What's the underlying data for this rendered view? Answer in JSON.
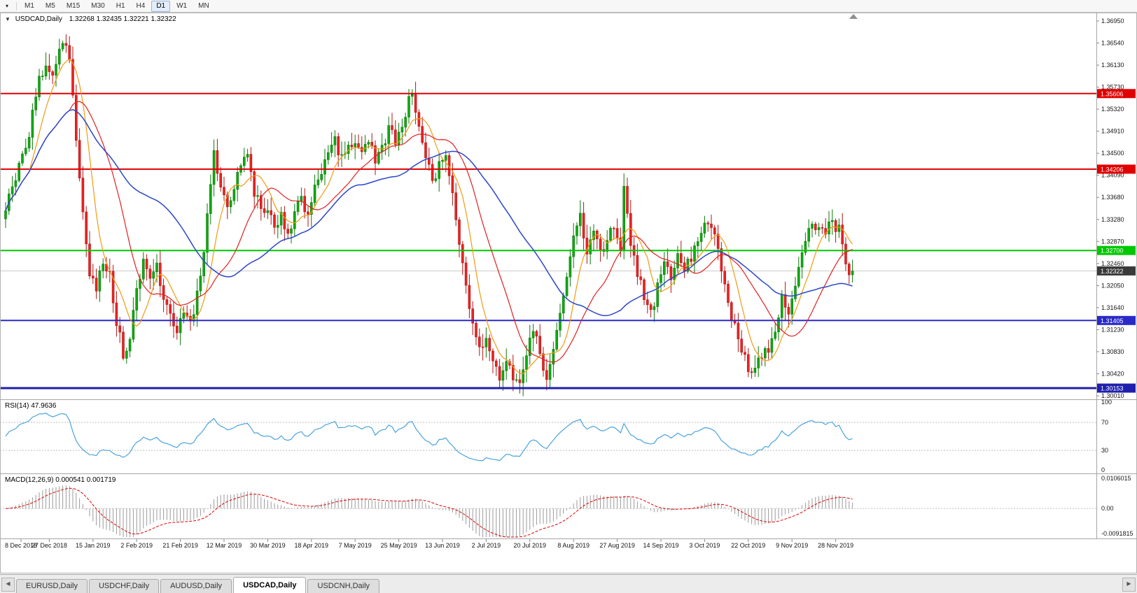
{
  "toolbar": {
    "dropdown_icon": "▾",
    "timeframes": [
      {
        "label": "M1",
        "active": false
      },
      {
        "label": "M5",
        "active": false
      },
      {
        "label": "M15",
        "active": false
      },
      {
        "label": "M30",
        "active": false
      },
      {
        "label": "H1",
        "active": false
      },
      {
        "label": "H4",
        "active": false
      },
      {
        "label": "D1",
        "active": true
      },
      {
        "label": "W1",
        "active": false
      },
      {
        "label": "MN",
        "active": false
      }
    ]
  },
  "chart": {
    "title": {
      "collapse_icon": "▼",
      "symbol": "USDCAD,Daily",
      "ohlc": "1.32268 1.32435 1.32221 1.32322"
    }
  },
  "chart_data": {
    "type": "candlestick",
    "symbol": "USDCAD",
    "timeframe": "Daily",
    "ohlc_display": {
      "open": "1.32268",
      "high": "1.32435",
      "low": "1.32221",
      "close": "1.32322"
    },
    "price_axis": [
      "1.36950",
      "1.36540",
      "1.36130",
      "1.35730",
      "1.35320",
      "1.34910",
      "1.34500",
      "1.34090",
      "1.33680",
      "1.33280",
      "1.32870",
      "1.32460",
      "1.32050",
      "1.31640",
      "1.31230",
      "1.30830",
      "1.30420",
      "1.30010"
    ],
    "price_axis_top_value": 1.3695,
    "price_axis_bottom_value": 1.3001,
    "date_axis": [
      "8 Dec 2018",
      "27 Dec 2018",
      "15 Jan 2019",
      "2 Feb 2019",
      "21 Feb 2019",
      "12 Mar 2019",
      "30 Mar 2019",
      "18 Apr 2019",
      "7 May 2019",
      "25 May 2019",
      "13 Jun 2019",
      "2 Jul 2019",
      "20 Jul 2019",
      "8 Aug 2019",
      "27 Aug 2019",
      "14 Sep 2019",
      "3 Oct 2019",
      "22 Oct 2019",
      "9 Nov 2019",
      "28 Nov 2019"
    ],
    "bars_per_label": 13,
    "bar_count": 253,
    "candle_up_color": "#0faa0f",
    "candle_up_border": "#0a7a0a",
    "candle_down_color": "#ee2222",
    "candle_down_border": "#b31414",
    "horizontal_lines": [
      {
        "price": 1.35606,
        "label": "1.35606",
        "color": "#e00000",
        "width": 2
      },
      {
        "price": 1.34206,
        "label": "1.34206",
        "color": "#e00000",
        "width": 2
      },
      {
        "price": 1.327,
        "label": "1.32700",
        "color": "#00c800",
        "width": 2
      },
      {
        "price": 1.31405,
        "label": "1.31405",
        "color": "#2929c8",
        "width": 2
      },
      {
        "price": 1.30153,
        "label": "1.30153",
        "color": "#1f1fae",
        "width": 3
      }
    ],
    "current_price": {
      "value": 1.32322,
      "label": "1.32322",
      "badge_color": "#3a3a3a"
    },
    "moving_averages": [
      {
        "name": "ma-fast",
        "period": 8,
        "color": "#f29a11",
        "width": 1.2
      },
      {
        "name": "ma-medium",
        "period": 20,
        "color": "#e02020",
        "width": 1.2
      },
      {
        "name": "ma-slow",
        "period": 44,
        "color": "#2b46c8",
        "width": 1.5
      }
    ],
    "close_waypoints": [
      [
        0,
        1.335
      ],
      [
        2,
        1.3385
      ],
      [
        4,
        1.342
      ],
      [
        6,
        1.3455
      ],
      [
        8,
        1.352
      ],
      [
        10,
        1.3585
      ],
      [
        12,
        1.3615
      ],
      [
        14,
        1.3595
      ],
      [
        16,
        1.3648
      ],
      [
        18,
        1.3655
      ],
      [
        19,
        1.3618
      ],
      [
        21,
        1.348
      ],
      [
        23,
        1.333
      ],
      [
        25,
        1.323
      ],
      [
        27,
        1.32
      ],
      [
        29,
        1.3255
      ],
      [
        31,
        1.3225
      ],
      [
        33,
        1.314
      ],
      [
        35,
        1.3075
      ],
      [
        37,
        1.311
      ],
      [
        39,
        1.32
      ],
      [
        41,
        1.3245
      ],
      [
        43,
        1.321
      ],
      [
        45,
        1.3245
      ],
      [
        47,
        1.318
      ],
      [
        49,
        1.315
      ],
      [
        51,
        1.3125
      ],
      [
        53,
        1.3155
      ],
      [
        55,
        1.313
      ],
      [
        57,
        1.319
      ],
      [
        59,
        1.327
      ],
      [
        61,
        1.339
      ],
      [
        62,
        1.345
      ],
      [
        64,
        1.338
      ],
      [
        66,
        1.335
      ],
      [
        68,
        1.339
      ],
      [
        70,
        1.343
      ],
      [
        72,
        1.346
      ],
      [
        74,
        1.338
      ],
      [
        76,
        1.334
      ],
      [
        78,
        1.335
      ],
      [
        80,
        1.331
      ],
      [
        82,
        1.334
      ],
      [
        84,
        1.33
      ],
      [
        86,
        1.334
      ],
      [
        88,
        1.336
      ],
      [
        90,
        1.333
      ],
      [
        92,
        1.338
      ],
      [
        94,
        1.342
      ],
      [
        96,
        1.345
      ],
      [
        98,
        1.347
      ],
      [
        100,
        1.344
      ],
      [
        102,
        1.346
      ],
      [
        104,
        1.3475
      ],
      [
        106,
        1.345
      ],
      [
        108,
        1.3475
      ],
      [
        110,
        1.344
      ],
      [
        112,
        1.3465
      ],
      [
        114,
        1.349
      ],
      [
        116,
        1.3475
      ],
      [
        118,
        1.35
      ],
      [
        120,
        1.3545
      ],
      [
        121,
        1.356
      ],
      [
        123,
        1.3495
      ],
      [
        125,
        1.344
      ],
      [
        127,
        1.3405
      ],
      [
        129,
        1.3425
      ],
      [
        131,
        1.3445
      ],
      [
        133,
        1.338
      ],
      [
        135,
        1.329
      ],
      [
        137,
        1.32
      ],
      [
        139,
        1.3135
      ],
      [
        141,
        1.3085
      ],
      [
        143,
        1.3105
      ],
      [
        145,
        1.306
      ],
      [
        147,
        1.303
      ],
      [
        149,
        1.307
      ],
      [
        151,
        1.304
      ],
      [
        153,
        1.3018
      ],
      [
        155,
        1.307
      ],
      [
        157,
        1.313
      ],
      [
        159,
        1.308
      ],
      [
        161,
        1.303
      ],
      [
        163,
        1.3085
      ],
      [
        165,
        1.315
      ],
      [
        167,
        1.322
      ],
      [
        169,
        1.329
      ],
      [
        171,
        1.333
      ],
      [
        173,
        1.327
      ],
      [
        175,
        1.3305
      ],
      [
        177,
        1.326
      ],
      [
        179,
        1.329
      ],
      [
        181,
        1.332
      ],
      [
        183,
        1.328
      ],
      [
        184,
        1.3385
      ],
      [
        186,
        1.329
      ],
      [
        188,
        1.323
      ],
      [
        190,
        1.318
      ],
      [
        192,
        1.315
      ],
      [
        194,
        1.32
      ],
      [
        196,
        1.324
      ],
      [
        198,
        1.322
      ],
      [
        200,
        1.3255
      ],
      [
        202,
        1.3235
      ],
      [
        204,
        1.326
      ],
      [
        206,
        1.329
      ],
      [
        208,
        1.333
      ],
      [
        210,
        1.331
      ],
      [
        212,
        1.327
      ],
      [
        214,
        1.321
      ],
      [
        216,
        1.315
      ],
      [
        218,
        1.311
      ],
      [
        220,
        1.307
      ],
      [
        222,
        1.3045
      ],
      [
        224,
        1.306
      ],
      [
        226,
        1.31
      ],
      [
        227,
        1.307
      ],
      [
        229,
        1.313
      ],
      [
        231,
        1.318
      ],
      [
        233,
        1.316
      ],
      [
        235,
        1.321
      ],
      [
        237,
        1.326
      ],
      [
        239,
        1.33
      ],
      [
        241,
        1.332
      ],
      [
        243,
        1.33
      ],
      [
        245,
        1.332
      ],
      [
        247,
        1.331
      ],
      [
        248,
        1.332
      ],
      [
        250,
        1.3245
      ],
      [
        251,
        1.3225
      ],
      [
        252,
        1.3232
      ]
    ]
  },
  "rsi": {
    "label": "RSI(14) 47.9636",
    "period": 14,
    "line_color": "#4aa3dd",
    "levels": [
      {
        "label": "100",
        "value": 100,
        "line": false
      },
      {
        "label": "70",
        "value": 70,
        "line": true
      },
      {
        "label": "30",
        "value": 30,
        "line": true
      },
      {
        "label": "0",
        "value": 0,
        "line": false
      }
    ]
  },
  "macd": {
    "label": "MACD(12,26,9) 0.000541 0.001719",
    "fast": 12,
    "slow": 26,
    "signal": 9,
    "histogram_color": "#9a9a9a",
    "signal_color": "#e00000",
    "axis": [
      {
        "label": "0.0106015",
        "value": 0.0106015
      },
      {
        "label": "0.00",
        "value": 0
      },
      {
        "label": "-0.0091815",
        "value": -0.0091815
      }
    ]
  },
  "tabbar": {
    "scroll_left": "◀",
    "scroll_right": "▶",
    "tabs": [
      {
        "label": "EURUSD,Daily",
        "active": false
      },
      {
        "label": "USDCHF,Daily",
        "active": false
      },
      {
        "label": "AUDUSD,Daily",
        "active": false
      },
      {
        "label": "USDCAD,Daily",
        "active": true
      },
      {
        "label": "USDCNH,Daily",
        "active": false
      }
    ]
  }
}
